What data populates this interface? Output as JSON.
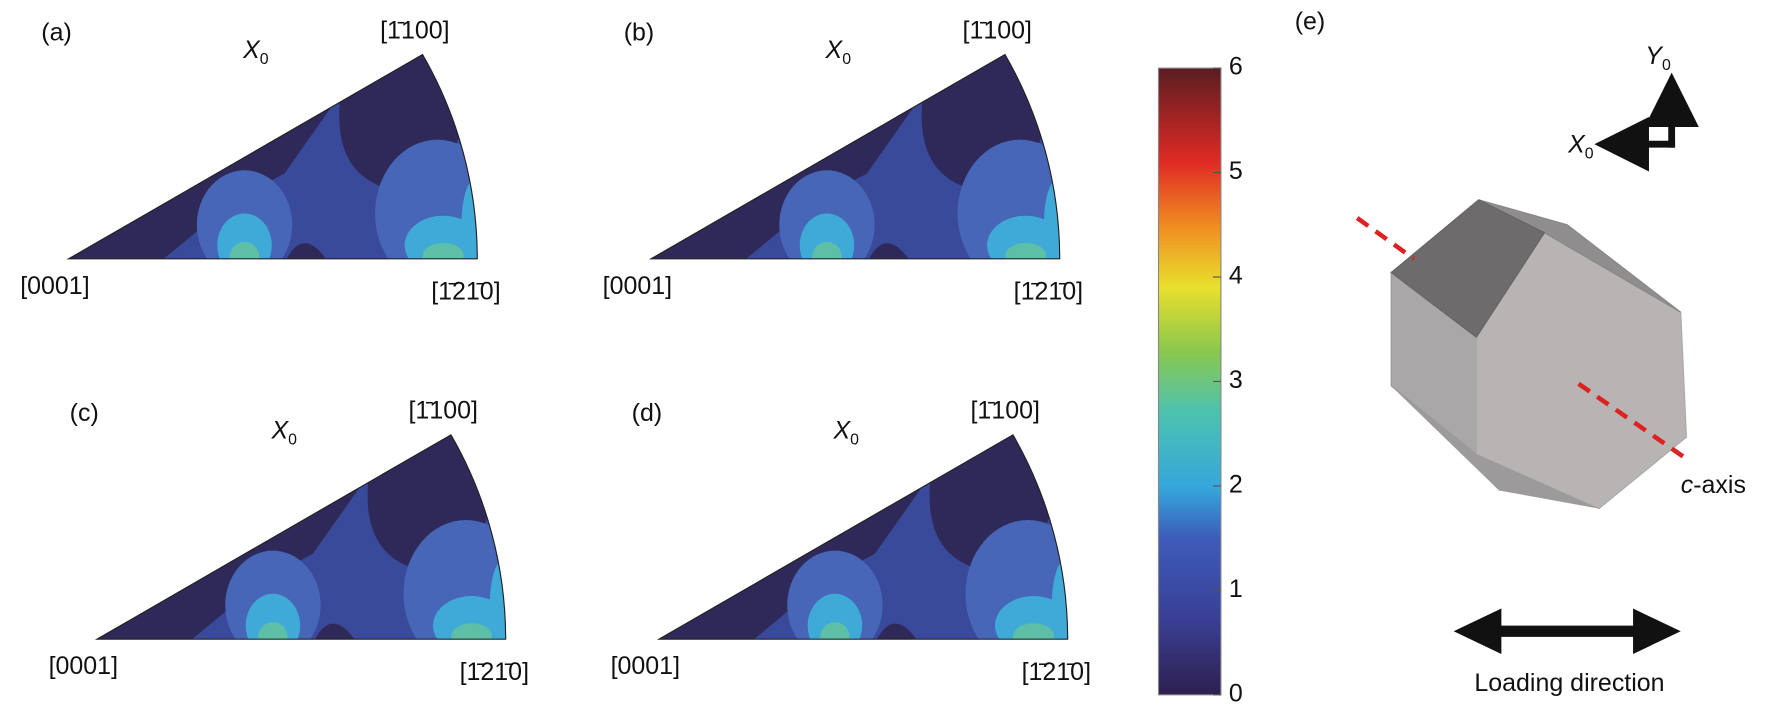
{
  "panels": [
    {
      "label": "(a)",
      "axis": {
        "name": "X",
        "sub": "0"
      },
      "pole_top": "[1̄100]",
      "pole_left": "[0001]",
      "pole_right": "[1̄21̄0]"
    },
    {
      "label": "(b)",
      "axis": {
        "name": "X",
        "sub": "0"
      },
      "pole_top": "[1̄100]",
      "pole_left": "[0001]",
      "pole_right": "[1̄21̄0]"
    },
    {
      "label": "(c)",
      "axis": {
        "name": "X",
        "sub": "0"
      },
      "pole_top": "[1̄100]",
      "pole_left": "[0001]",
      "pole_right": "[1̄21̄0]"
    },
    {
      "label": "(d)",
      "axis": {
        "name": "X",
        "sub": "0"
      },
      "pole_top": "[1̄100]",
      "pole_left": "[0001]",
      "pole_right": "[1̄21̄0]"
    }
  ],
  "colorbar": {
    "lim": [
      0,
      6
    ],
    "ticks": [
      0,
      1,
      2,
      3,
      4,
      5,
      6
    ]
  },
  "schematic": {
    "label": "(e)",
    "y_axis": {
      "name": "Y",
      "sub": "0"
    },
    "x_axis": {
      "name": "X",
      "sub": "0"
    },
    "c_axis": {
      "prefix": "c",
      "text": "-axis"
    },
    "loading": "Loading direction"
  }
}
